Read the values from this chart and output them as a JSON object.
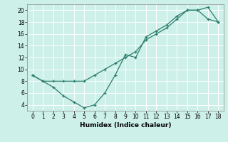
{
  "line1_x": [
    0,
    1,
    2,
    3,
    4,
    5,
    6,
    7,
    8,
    9,
    10,
    11,
    12,
    13,
    14,
    15,
    16,
    17,
    18
  ],
  "line1_y": [
    9,
    8,
    8,
    8,
    8,
    8,
    9,
    10,
    11,
    12,
    13,
    15,
    16,
    17,
    18.5,
    20,
    20,
    18.5,
    18
  ],
  "line2_x": [
    0,
    1,
    2,
    3,
    4,
    5,
    6,
    7,
    8,
    9,
    10,
    11,
    12,
    13,
    14,
    15,
    16,
    17,
    18
  ],
  "line2_y": [
    9,
    8,
    7,
    5.5,
    4.5,
    3.5,
    4,
    6,
    9,
    12.5,
    12,
    15.5,
    16.5,
    17.5,
    19,
    20,
    20,
    20.5,
    18
  ],
  "xlabel": "Humidex (Indice chaleur)",
  "xlim": [
    -0.5,
    18.5
  ],
  "ylim": [
    3,
    21
  ],
  "xticks": [
    0,
    1,
    2,
    3,
    4,
    5,
    6,
    7,
    8,
    9,
    10,
    11,
    12,
    13,
    14,
    15,
    16,
    17,
    18
  ],
  "yticks": [
    4,
    6,
    8,
    10,
    12,
    14,
    16,
    18,
    20
  ],
  "line_color": "#2d7d6f",
  "bg_color": "#cdf0e8",
  "grid_color": "#ffffff"
}
